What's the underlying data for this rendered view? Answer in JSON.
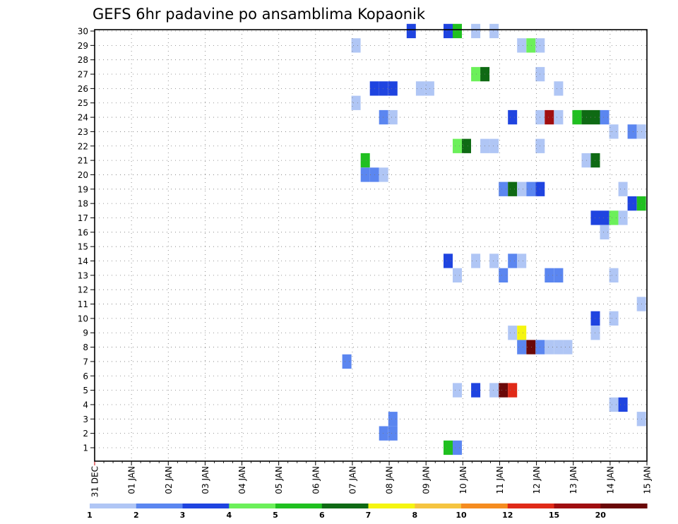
{
  "chart_data": {
    "type": "heatmap",
    "title": "GEFS 6hr padavine po ansamblima Kopaonik",
    "xlabel": "",
    "ylabel": "",
    "grid": true,
    "x_labels": [
      "31 DEC",
      "01 JAN",
      "02 JAN",
      "03 JAN",
      "04 JAN",
      "05 JAN",
      "06 JAN",
      "07 JAN",
      "08 JAN",
      "09 JAN",
      "10 JAN",
      "11 JAN",
      "12 JAN",
      "13 JAN",
      "14 JAN",
      "15 JAN"
    ],
    "x_range_days": [
      0,
      15
    ],
    "y_labels": [
      "1",
      "2",
      "3",
      "4",
      "5",
      "6",
      "7",
      "8",
      "9",
      "10",
      "11",
      "12",
      "13",
      "14",
      "15",
      "16",
      "17",
      "18",
      "19",
      "20",
      "21",
      "22",
      "23",
      "24",
      "25",
      "26",
      "27",
      "28",
      "29",
      "30"
    ],
    "colorbar": {
      "tick_labels": [
        "1",
        "2",
        "3",
        "4",
        "5",
        "6",
        "7",
        "8",
        "10",
        "12",
        "15",
        "20"
      ],
      "colors": [
        "#b0c6f5",
        "#5b86f0",
        "#1f44e0",
        "#6cf05a",
        "#20c020",
        "#0f6a14",
        "#f5f510",
        "#f5c440",
        "#f58c20",
        "#e02a18",
        "#a00e10",
        "#6a0808"
      ]
    },
    "cells": [
      {
        "m": 30,
        "d": 8.6,
        "v": 3
      },
      {
        "m": 30,
        "d": 9.6,
        "v": 3
      },
      {
        "m": 30,
        "d": 9.85,
        "v": 5
      },
      {
        "m": 30,
        "d": 10.35,
        "v": 1
      },
      {
        "m": 30,
        "d": 10.85,
        "v": 1
      },
      {
        "m": 29,
        "d": 7.1,
        "v": 1
      },
      {
        "m": 29,
        "d": 11.6,
        "v": 1
      },
      {
        "m": 29,
        "d": 11.85,
        "v": 4
      },
      {
        "m": 29,
        "d": 12.1,
        "v": 1
      },
      {
        "m": 27,
        "d": 10.35,
        "v": 4
      },
      {
        "m": 27,
        "d": 10.6,
        "v": 6
      },
      {
        "m": 27,
        "d": 12.1,
        "v": 1
      },
      {
        "m": 26,
        "d": 7.6,
        "v": 3
      },
      {
        "m": 26,
        "d": 7.85,
        "v": 3
      },
      {
        "m": 26,
        "d": 8.1,
        "v": 3
      },
      {
        "m": 26,
        "d": 8.85,
        "v": 1
      },
      {
        "m": 26,
        "d": 9.1,
        "v": 1
      },
      {
        "m": 26,
        "d": 12.6,
        "v": 1
      },
      {
        "m": 25,
        "d": 7.1,
        "v": 1
      },
      {
        "m": 24,
        "d": 7.85,
        "v": 2
      },
      {
        "m": 24,
        "d": 8.1,
        "v": 1
      },
      {
        "m": 24,
        "d": 11.35,
        "v": 3
      },
      {
        "m": 24,
        "d": 12.1,
        "v": 1
      },
      {
        "m": 24,
        "d": 12.35,
        "v": 15
      },
      {
        "m": 24,
        "d": 12.6,
        "v": 1
      },
      {
        "m": 24,
        "d": 13.1,
        "v": 5
      },
      {
        "m": 24,
        "d": 13.35,
        "v": 6
      },
      {
        "m": 24,
        "d": 13.6,
        "v": 6
      },
      {
        "m": 24,
        "d": 13.85,
        "v": 2
      },
      {
        "m": 23,
        "d": 14.1,
        "v": 1
      },
      {
        "m": 23,
        "d": 14.6,
        "v": 2
      },
      {
        "m": 23,
        "d": 14.85,
        "v": 1
      },
      {
        "m": 22,
        "d": 9.85,
        "v": 4
      },
      {
        "m": 22,
        "d": 10.1,
        "v": 6
      },
      {
        "m": 22,
        "d": 10.6,
        "v": 1
      },
      {
        "m": 22,
        "d": 10.85,
        "v": 1
      },
      {
        "m": 22,
        "d": 12.1,
        "v": 1
      },
      {
        "m": 21,
        "d": 7.35,
        "v": 5
      },
      {
        "m": 21,
        "d": 13.35,
        "v": 1
      },
      {
        "m": 21,
        "d": 13.6,
        "v": 6
      },
      {
        "m": 20,
        "d": 7.35,
        "v": 2
      },
      {
        "m": 20,
        "d": 7.6,
        "v": 2
      },
      {
        "m": 20,
        "d": 7.85,
        "v": 1
      },
      {
        "m": 19,
        "d": 11.1,
        "v": 2
      },
      {
        "m": 19,
        "d": 11.35,
        "v": 6
      },
      {
        "m": 19,
        "d": 11.6,
        "v": 1
      },
      {
        "m": 19,
        "d": 11.85,
        "v": 2
      },
      {
        "m": 19,
        "d": 12.1,
        "v": 3
      },
      {
        "m": 19,
        "d": 14.35,
        "v": 1
      },
      {
        "m": 18,
        "d": 14.6,
        "v": 3
      },
      {
        "m": 18,
        "d": 14.85,
        "v": 5
      },
      {
        "m": 17,
        "d": 13.6,
        "v": 3
      },
      {
        "m": 17,
        "d": 13.85,
        "v": 3
      },
      {
        "m": 17,
        "d": 14.1,
        "v": 4
      },
      {
        "m": 17,
        "d": 14.35,
        "v": 1
      },
      {
        "m": 16,
        "d": 13.85,
        "v": 1
      },
      {
        "m": 14,
        "d": 9.6,
        "v": 3
      },
      {
        "m": 14,
        "d": 10.35,
        "v": 1
      },
      {
        "m": 14,
        "d": 10.85,
        "v": 1
      },
      {
        "m": 14,
        "d": 11.35,
        "v": 2
      },
      {
        "m": 14,
        "d": 11.6,
        "v": 1
      },
      {
        "m": 13,
        "d": 9.85,
        "v": 1
      },
      {
        "m": 13,
        "d": 11.1,
        "v": 2
      },
      {
        "m": 13,
        "d": 12.35,
        "v": 2
      },
      {
        "m": 13,
        "d": 12.6,
        "v": 2
      },
      {
        "m": 13,
        "d": 14.1,
        "v": 1
      },
      {
        "m": 11,
        "d": 14.85,
        "v": 1
      },
      {
        "m": 10,
        "d": 13.6,
        "v": 3
      },
      {
        "m": 10,
        "d": 14.1,
        "v": 1
      },
      {
        "m": 9,
        "d": 11.35,
        "v": 1
      },
      {
        "m": 9,
        "d": 11.6,
        "v": 7
      },
      {
        "m": 9,
        "d": 13.6,
        "v": 1
      },
      {
        "m": 8,
        "d": 11.6,
        "v": 2
      },
      {
        "m": 8,
        "d": 11.85,
        "v": 20
      },
      {
        "m": 8,
        "d": 12.1,
        "v": 2
      },
      {
        "m": 8,
        "d": 12.35,
        "v": 1
      },
      {
        "m": 8,
        "d": 12.6,
        "v": 1
      },
      {
        "m": 8,
        "d": 12.85,
        "v": 1
      },
      {
        "m": 7,
        "d": 6.85,
        "v": 2
      },
      {
        "m": 5,
        "d": 9.85,
        "v": 1
      },
      {
        "m": 5,
        "d": 10.35,
        "v": 3
      },
      {
        "m": 5,
        "d": 10.85,
        "v": 1
      },
      {
        "m": 5,
        "d": 11.1,
        "v": 20
      },
      {
        "m": 5,
        "d": 11.35,
        "v": 12
      },
      {
        "m": 4,
        "d": 14.1,
        "v": 1
      },
      {
        "m": 4,
        "d": 14.35,
        "v": 3
      },
      {
        "m": 3,
        "d": 8.1,
        "v": 2
      },
      {
        "m": 3,
        "d": 14.85,
        "v": 1
      },
      {
        "m": 2,
        "d": 7.85,
        "v": 2
      },
      {
        "m": 2,
        "d": 8.1,
        "v": 2
      },
      {
        "m": 1,
        "d": 9.6,
        "v": 5
      },
      {
        "m": 1,
        "d": 9.85,
        "v": 2
      }
    ]
  }
}
